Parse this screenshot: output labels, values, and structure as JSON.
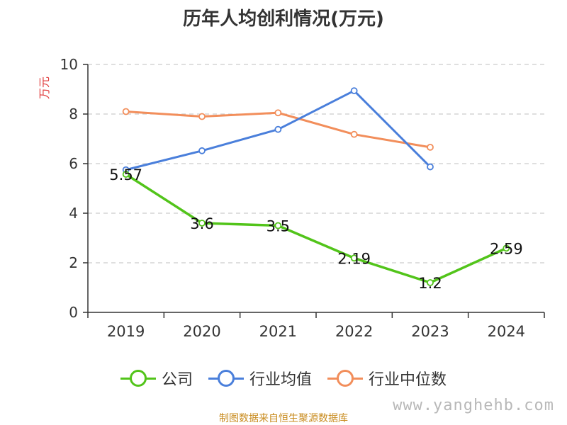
{
  "title": "历年人均创利情况(万元)",
  "source_note": "制图数据来自恒生聚源数据库",
  "watermark": "www.yanghehb.com",
  "chart_data": {
    "type": "line",
    "title": "历年人均创利情况(万元)",
    "ylabel": "万元",
    "xlabel": "",
    "categories": [
      "2019",
      "2020",
      "2021",
      "2022",
      "2023",
      "2024"
    ],
    "ylim": [
      0,
      10
    ],
    "yticks": [
      0,
      2,
      4,
      6,
      8,
      10
    ],
    "grid": true,
    "legend_position": "bottom",
    "series": [
      {
        "name": "公司",
        "color": "#52c41a",
        "values": [
          5.57,
          3.6,
          3.5,
          2.19,
          1.2,
          2.59
        ],
        "labels": [
          "5.57",
          "3.6",
          "3.5",
          "2.19",
          "1.2",
          "2.59"
        ]
      },
      {
        "name": "行业均值",
        "color": "#4a7fdb",
        "values": [
          5.75,
          6.52,
          7.38,
          8.94,
          5.87,
          null
        ]
      },
      {
        "name": "行业中位数",
        "color": "#f28e5b",
        "values": [
          8.1,
          7.9,
          8.05,
          7.18,
          6.66,
          null
        ]
      }
    ]
  }
}
